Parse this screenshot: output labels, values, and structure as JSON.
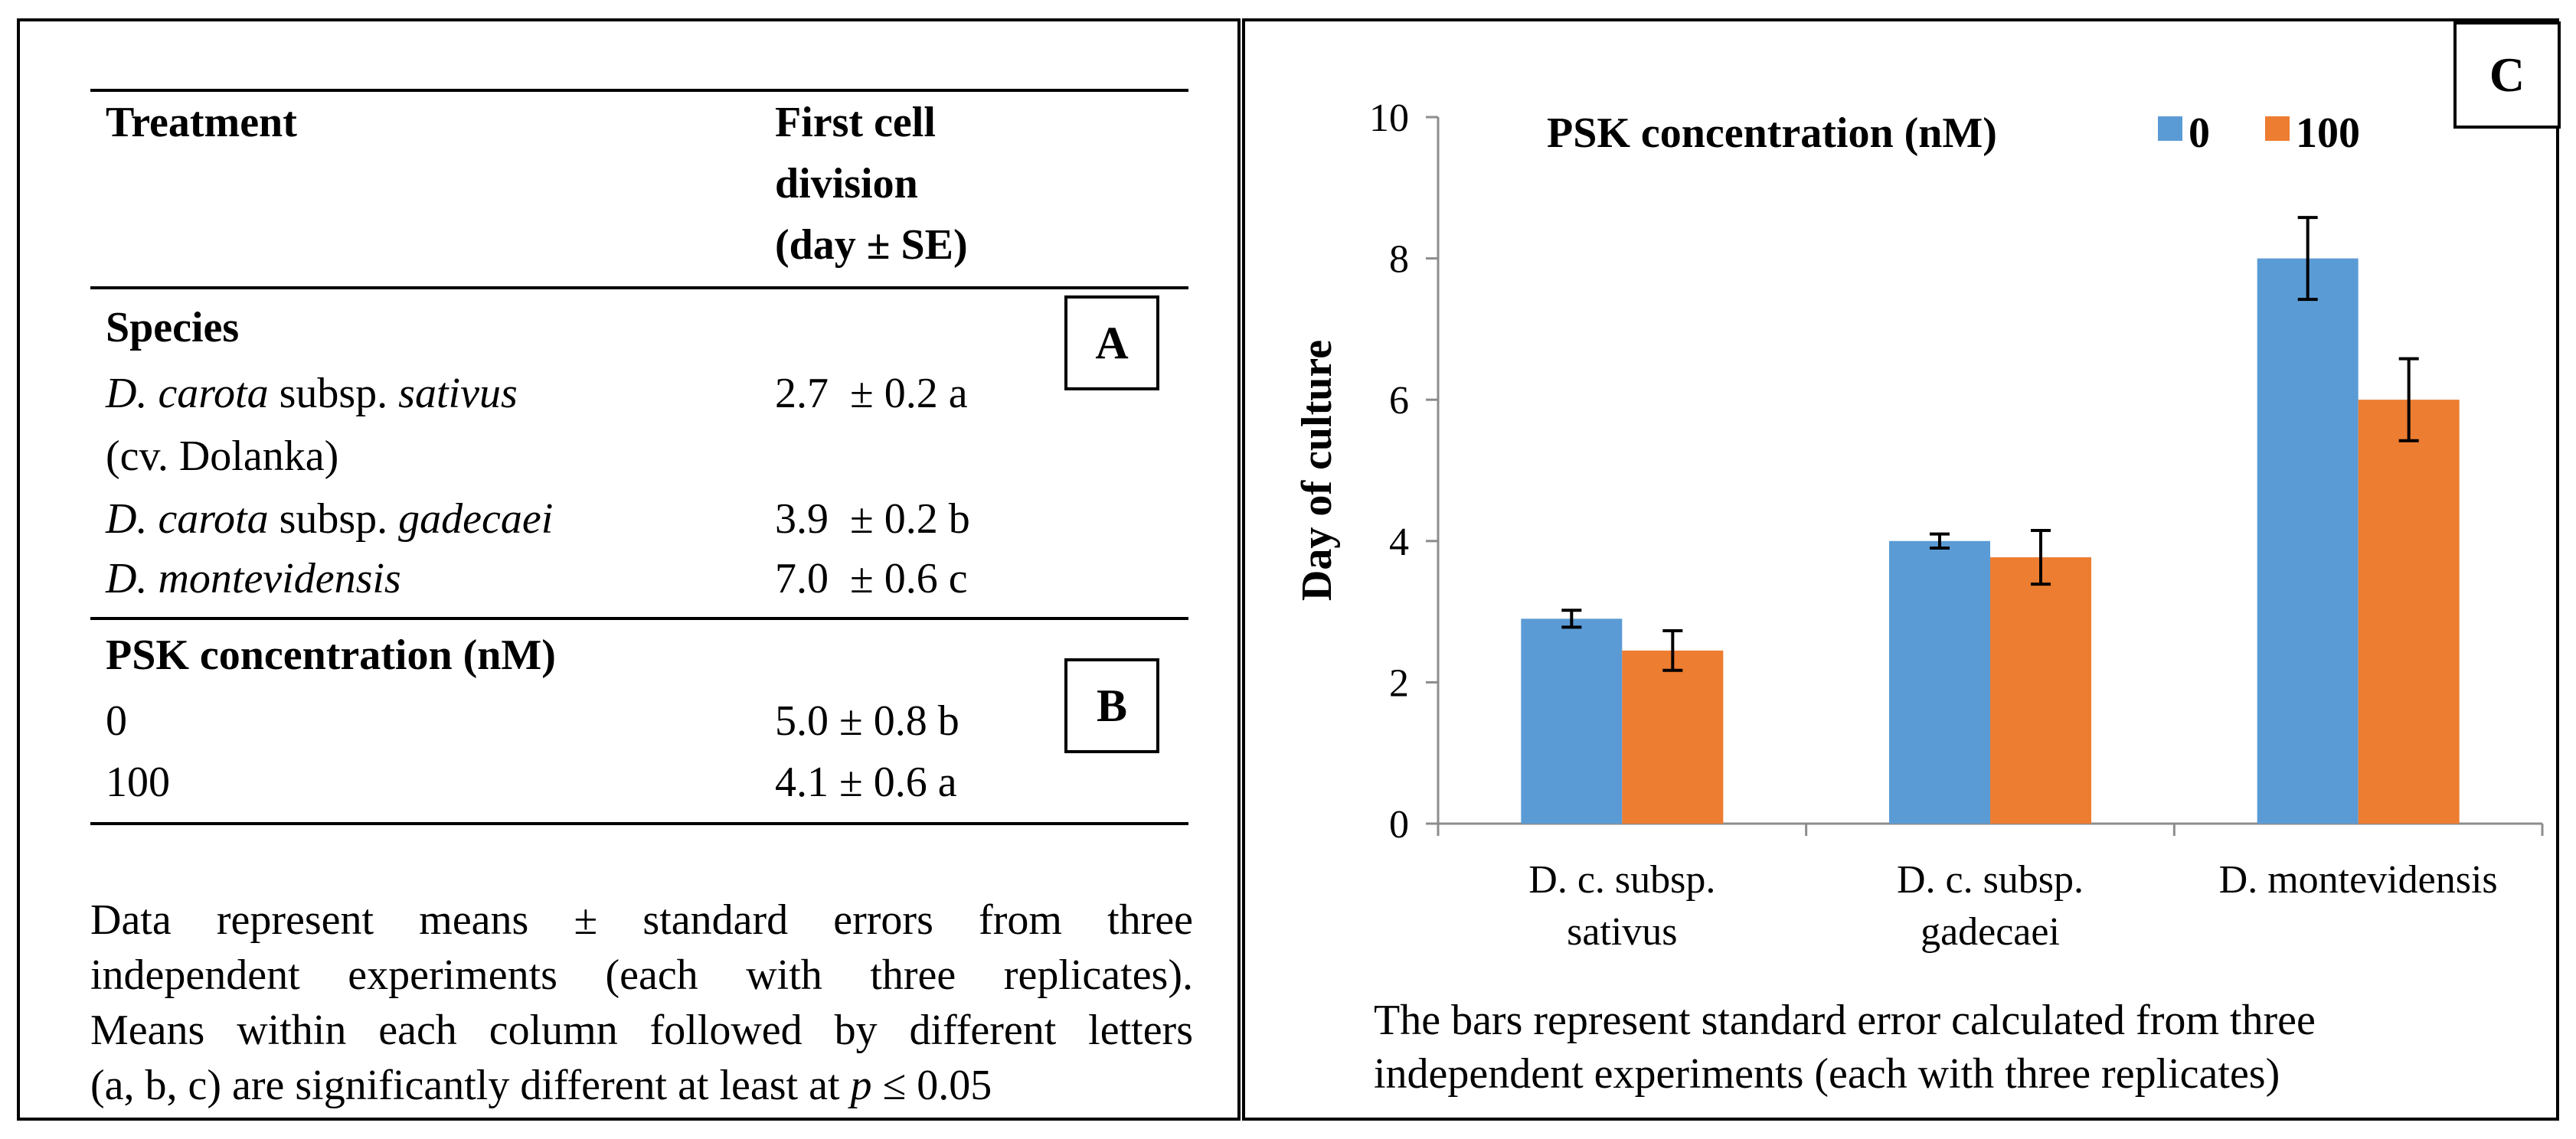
{
  "table": {
    "header": {
      "treatment": "Treatment",
      "division_lines": [
        "First cell",
        "division",
        "(day ± SE)"
      ]
    },
    "species_section": {
      "title": "Species",
      "label": "A",
      "rows": [
        {
          "name_italic": "D. carota",
          "name_plain": " subsp. ",
          "name_italic2": "sativus",
          "value": "2.7  ± 0.2 a"
        },
        {
          "sub": "(cv. Dolanka)"
        },
        {
          "name_italic": "D. carota",
          "name_plain": " subsp. ",
          "name_italic2": "gadecaei",
          "value": "3.9  ± 0.2 b"
        },
        {
          "name_italic": "D. montevidensis",
          "value": "7.0  ± 0.6 c"
        }
      ]
    },
    "psk_section": {
      "title": "PSK concentration (nM)",
      "label": "B",
      "rows": [
        {
          "name": "0",
          "value": "5.0 ± 0.8 b"
        },
        {
          "name": "100",
          "value": "4.1 ± 0.6 a"
        }
      ]
    },
    "note": {
      "lines": [
        "Data represent means ± standard errors from three",
        "independent experiments (each with three replicates).",
        "Means within each column followed by different letters"
      ],
      "last_line_prefix": "(a, b, c) are significantly different at least at ",
      "last_line_p": "p",
      "last_line_suffix": " ≤ 0.05"
    }
  },
  "panel_c_label": "C",
  "chart_caption": {
    "lines": [
      "The bars represent standard error calculated from three",
      "independent experiments (each with three replicates)"
    ]
  },
  "chart_data": {
    "type": "bar",
    "title": "",
    "legend_title": "PSK concentration (nM)",
    "legend_position": "top",
    "xlabel": "",
    "ylabel": "Day of culture",
    "ylim": [
      0,
      10
    ],
    "yticks": [
      0,
      2,
      4,
      6,
      8,
      10
    ],
    "grid": false,
    "categories": [
      [
        "D. c. subsp.",
        "sativus"
      ],
      [
        "D. c. subsp.",
        "gadecaei"
      ],
      [
        "D. montevidensis"
      ]
    ],
    "series": [
      {
        "name": "0",
        "color": "#5b9bd5",
        "values": [
          2.9,
          4.0,
          8.0
        ],
        "errors": [
          0.12,
          0.1,
          0.58
        ]
      },
      {
        "name": "100",
        "color": "#ed7d31",
        "values": [
          2.45,
          3.77,
          6.0
        ],
        "errors": [
          0.28,
          0.38,
          0.58
        ]
      }
    ]
  }
}
